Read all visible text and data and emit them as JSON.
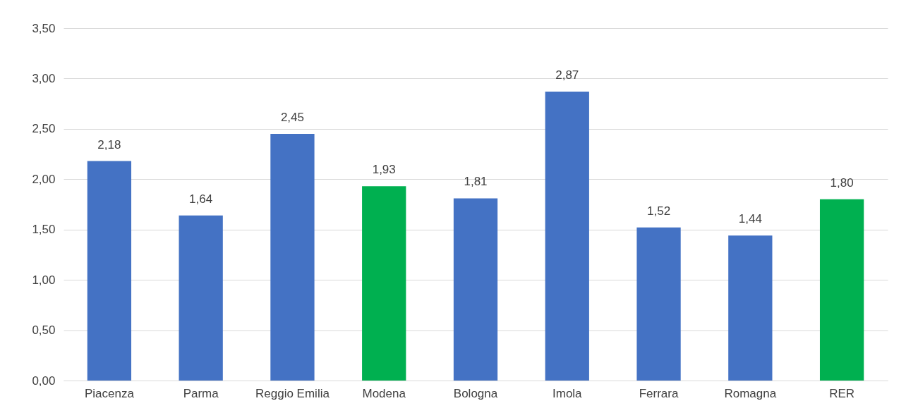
{
  "chart_data": {
    "type": "bar",
    "categories": [
      "Piacenza",
      "Parma",
      "Reggio Emilia",
      "Modena",
      "Bologna",
      "Imola",
      "Ferrara",
      "Romagna",
      "RER"
    ],
    "values": [
      2.18,
      1.64,
      2.45,
      1.93,
      1.81,
      2.87,
      1.52,
      1.44,
      1.8
    ],
    "colors": [
      "#4472c4",
      "#4472c4",
      "#4472c4",
      "#00b050",
      "#4472c4",
      "#4472c4",
      "#4472c4",
      "#4472c4",
      "#00b050"
    ],
    "value_labels": [
      "2,18",
      "1,64",
      "2,45",
      "1,93",
      "1,81",
      "2,87",
      "1,52",
      "1,44",
      "1,80"
    ],
    "ylim": [
      0,
      3.5
    ],
    "yticks": [
      {
        "value": 0,
        "label": "0,00"
      },
      {
        "value": 0.5,
        "label": "0,50"
      },
      {
        "value": 1,
        "label": "1,00"
      },
      {
        "value": 1.5,
        "label": "1,50"
      },
      {
        "value": 2,
        "label": "2,00"
      },
      {
        "value": 2.5,
        "label": "2,50"
      },
      {
        "value": 3,
        "label": "3,00"
      },
      {
        "value": 3.5,
        "label": "3,50"
      }
    ],
    "grid": "y"
  }
}
